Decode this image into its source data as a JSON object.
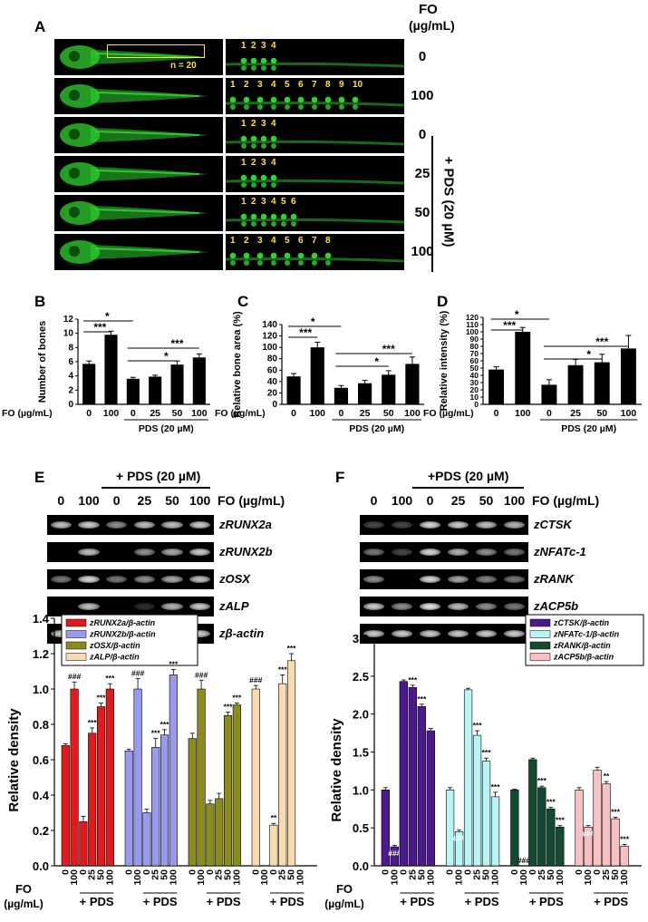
{
  "panel_labels": {
    "a": "A",
    "b": "B",
    "c": "C",
    "d": "D",
    "e": "E",
    "f": "F"
  },
  "panel_a": {
    "fo_header": "FO",
    "unit_header": "(µg/mL)",
    "box_note": "n = 20",
    "pds_label": "+ PDS (20 µM)",
    "rows": [
      {
        "dose": "0",
        "vertebrae": [
          "1",
          "2",
          "3",
          "4"
        ]
      },
      {
        "dose": "100",
        "vertebrae": [
          "1",
          "2",
          "3",
          "4",
          "5",
          "6",
          "7",
          "8",
          "9",
          "10"
        ]
      },
      {
        "dose": "0",
        "vertebrae": [
          "1",
          "2",
          "3",
          "4"
        ]
      },
      {
        "dose": "25",
        "vertebrae": [
          "1",
          "2",
          "3",
          "4"
        ]
      },
      {
        "dose": "50",
        "vertebrae": [
          "1",
          "2",
          "3",
          "4",
          "5",
          "6"
        ]
      },
      {
        "dose": "100",
        "vertebrae": [
          "1",
          "2",
          "3",
          "4",
          "5",
          "6",
          "7",
          "8"
        ]
      }
    ]
  },
  "small_axis": {
    "fo_label": "FO (µg/mL)",
    "pds_label": "PDS (20 µM)"
  },
  "panel_e": {
    "pds_header": "+ PDS (20 µM)",
    "doses": [
      "0",
      "100",
      "0",
      "25",
      "50",
      "100"
    ],
    "fo_unit": "FO (µg/mL)",
    "genes": [
      "zRUNX2a",
      "zRUNX2b",
      "zOSX",
      "zALP",
      "zβ-actin"
    ],
    "band_intensity": [
      [
        0.8,
        0.85,
        0.6,
        0.8,
        0.8,
        0.85
      ],
      [
        0.0,
        0.8,
        0.0,
        0.6,
        0.7,
        0.85
      ],
      [
        0.5,
        0.9,
        0.5,
        0.6,
        0.7,
        0.8
      ],
      [
        0.0,
        0.8,
        0.0,
        0.2,
        0.75,
        0.85
      ],
      [
        0.85,
        0.85,
        0.85,
        0.85,
        0.85,
        0.85
      ]
    ]
  },
  "panel_f": {
    "pds_header": "+PDS (20 µM)",
    "doses": [
      "0",
      "100",
      "0",
      "25",
      "50",
      "100"
    ],
    "fo_unit": "FO (µg/mL)",
    "genes": [
      "zCTSK",
      "zNFATc-1",
      "zRANK",
      "zACP5b",
      "zβ-actin"
    ],
    "band_intensity": [
      [
        0.3,
        0.3,
        0.9,
        0.85,
        0.8,
        0.75
      ],
      [
        0.5,
        0.3,
        0.9,
        0.75,
        0.6,
        0.5
      ],
      [
        0.6,
        0.0,
        0.9,
        0.7,
        0.55,
        0.5
      ],
      [
        0.85,
        0.6,
        0.95,
        0.8,
        0.6,
        0.5
      ],
      [
        0.85,
        0.85,
        0.85,
        0.85,
        0.85,
        0.85
      ]
    ]
  },
  "big_axis": {
    "fo_label": "FO",
    "unit_label": "(µg/mL)",
    "pds_label": "+ PDS"
  },
  "colors": {
    "fish_green": "#2fd22f",
    "runx2a": "#e31a1c",
    "runx2b": "#9999ee",
    "osx": "#8c8c1e",
    "alp": "#f8dcb0",
    "ctsk": "#4b1a8e",
    "nfatc1": "#b8f6f6",
    "rank": "#144a30",
    "acp5b": "#f8c0c0"
  },
  "chart_data": [
    {
      "type": "bar",
      "panel": "B",
      "ylabel": "Number of bones",
      "categories": [
        "0",
        "100",
        "0",
        "25",
        "50",
        "100"
      ],
      "values": [
        5.7,
        9.8,
        3.6,
        3.9,
        5.6,
        6.6
      ],
      "errors": [
        0.4,
        0.5,
        0.2,
        0.2,
        0.5,
        0.5
      ],
      "ylim": [
        0,
        12
      ],
      "yticks": [
        "0",
        "2",
        "4",
        "6",
        "8",
        "10",
        "12"
      ],
      "significance": [
        "*",
        "***",
        "*",
        "***"
      ]
    },
    {
      "type": "bar",
      "panel": "C",
      "ylabel": "Relative bone area (%)",
      "categories": [
        "0",
        "100",
        "0",
        "25",
        "50",
        "100"
      ],
      "values": [
        49,
        100,
        29,
        37,
        52,
        71
      ],
      "errors": [
        5,
        9,
        4,
        5,
        7,
        12
      ],
      "ylim": [
        0,
        140
      ],
      "yticks": [
        "0",
        "20",
        "40",
        "60",
        "80",
        "100",
        "120",
        "140"
      ],
      "significance": [
        "*",
        "***",
        "*",
        "***"
      ]
    },
    {
      "type": "bar",
      "panel": "D",
      "ylabel": "Relative intensity (%)",
      "categories": [
        "0",
        "100",
        "0",
        "25",
        "50",
        "100"
      ],
      "values": [
        48,
        100,
        27,
        54,
        58,
        77
      ],
      "errors": [
        4,
        6,
        7,
        8,
        11,
        18
      ],
      "ylim": [
        0,
        120
      ],
      "yticks": [
        "0",
        "10",
        "20",
        "30",
        "40",
        "50",
        "60",
        "70",
        "80",
        "90",
        "100",
        "110",
        "120"
      ],
      "significance": [
        "*",
        "***",
        "*",
        "***"
      ]
    },
    {
      "type": "bar",
      "panel": "E",
      "ylabel": "Relative density",
      "categories": [
        "0",
        "100",
        "0",
        "25",
        "50",
        "100"
      ],
      "ylim": [
        0,
        1.4
      ],
      "yticks": [
        "0.0",
        "0.2",
        "0.4",
        "0.6",
        "0.8",
        "1.0",
        "1.2",
        "1.4"
      ],
      "series": [
        {
          "name": "zRUNX2a/β-actin",
          "values": [
            0.68,
            1.0,
            0.25,
            0.75,
            0.9,
            1.0
          ],
          "errors": [
            0.01,
            0.04,
            0.03,
            0.03,
            0.02,
            0.03
          ],
          "marks": [
            "",
            "###",
            "",
            "***",
            "***",
            "***"
          ]
        },
        {
          "name": "zRUNX2b/β-actin",
          "values": [
            0.65,
            1.0,
            0.3,
            0.67,
            0.74,
            1.08
          ],
          "errors": [
            0.01,
            0.06,
            0.02,
            0.05,
            0.03,
            0.03
          ],
          "marks": [
            "",
            "###",
            "",
            "***",
            "***",
            "***"
          ]
        },
        {
          "name": "zOSX/β-actin",
          "values": [
            0.72,
            1.0,
            0.35,
            0.38,
            0.85,
            0.91
          ],
          "errors": [
            0.03,
            0.05,
            0.02,
            0.03,
            0.02,
            0.01
          ],
          "marks": [
            "",
            "###",
            "",
            "",
            "***",
            "***"
          ]
        },
        {
          "name": "zALP/β-actin",
          "values": [
            1.0,
            0.0,
            0.23,
            1.03,
            1.16,
            0.0
          ],
          "errors": [
            0.02,
            0,
            0.01,
            0.05,
            0.04,
            0
          ],
          "marks": [
            "###",
            "",
            "**",
            "***",
            "***",
            ""
          ]
        }
      ]
    },
    {
      "type": "bar",
      "panel": "F",
      "ylabel": "Relative density",
      "categories": [
        "0",
        "100",
        "0",
        "25",
        "50",
        "100"
      ],
      "ylim": [
        0,
        3.0
      ],
      "yticks": [
        "0.0",
        "0.5",
        "1.0",
        "1.5",
        "2.0",
        "2.5",
        "3.0"
      ],
      "series": [
        {
          "name": "zCTSK/β-actin",
          "values": [
            1.0,
            0.25,
            2.43,
            2.35,
            2.1,
            1.78
          ],
          "errors": [
            0.03,
            0.02,
            0.02,
            0.03,
            0.03,
            0.03
          ],
          "marks": [
            "",
            "###",
            "",
            "***",
            "***",
            ""
          ]
        },
        {
          "name": "zNFATc-1/β-actin",
          "values": [
            1.0,
            0.45,
            2.32,
            1.72,
            1.38,
            0.91
          ],
          "errors": [
            0.03,
            0.02,
            0.02,
            0.06,
            0.04,
            0.06
          ],
          "marks": [
            "",
            "###",
            "",
            "***",
            "***",
            "***"
          ]
        },
        {
          "name": "zRANK/β-actin",
          "values": [
            1.0,
            0.0,
            1.4,
            1.03,
            0.75,
            0.51
          ],
          "errors": [
            0.01,
            0,
            0.02,
            0.02,
            0.02,
            0.02
          ],
          "marks": [
            "",
            "###",
            "",
            "***",
            "***",
            "***"
          ]
        },
        {
          "name": "zACP5b/β-actin",
          "values": [
            1.0,
            0.51,
            1.26,
            1.08,
            0.62,
            0.26
          ],
          "errors": [
            0.03,
            0.02,
            0.04,
            0.03,
            0.02,
            0.02
          ],
          "marks": [
            "",
            "###",
            "",
            "**",
            "***",
            "***"
          ]
        }
      ]
    }
  ]
}
